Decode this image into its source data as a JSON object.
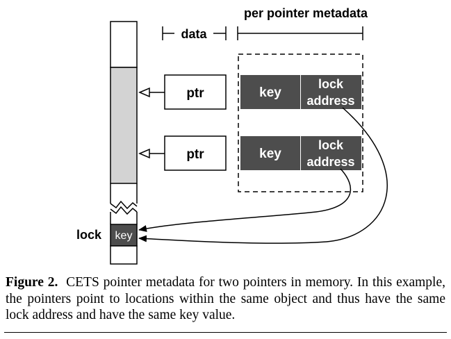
{
  "diagram": {
    "header_data": "data",
    "header_metadata": "per pointer metadata",
    "pointers": [
      {
        "label": "ptr",
        "key_label": "key",
        "lock_label_line1": "lock",
        "lock_label_line2": "address"
      },
      {
        "label": "ptr",
        "key_label": "key",
        "lock_label_line1": "lock",
        "lock_label_line2": "address"
      }
    ],
    "lock_label": "lock",
    "lock_key_label": "key"
  },
  "caption": {
    "label": "Figure 2.",
    "text": "CETS pointer metadata for two pointers in memory. In this example, the pointers point to locations within the same object and thus have the same lock address and have the same key value."
  },
  "colors": {
    "object_fill": "#d3d3d3",
    "metadata_fill": "#4d4d4d",
    "line": "#000000"
  }
}
